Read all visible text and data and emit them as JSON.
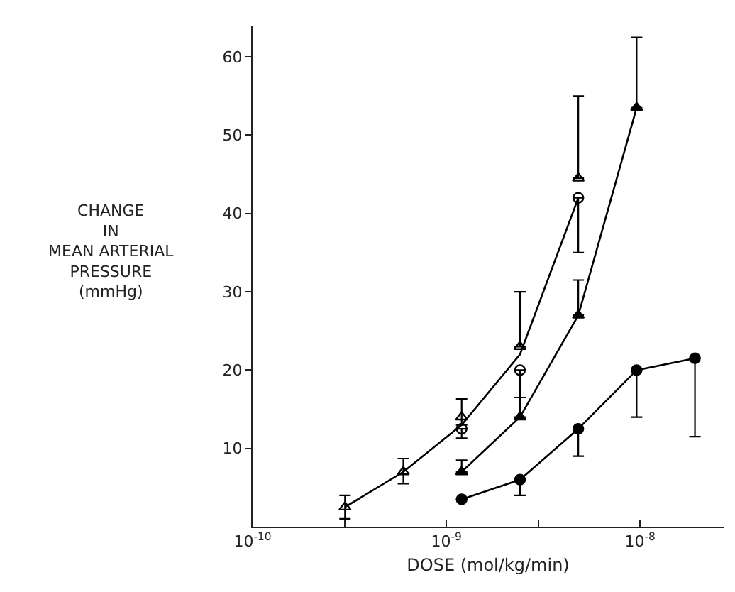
{
  "chart_data": {
    "type": "scatter",
    "xlabel": "DOSE (mol/kg/min)",
    "ylabel": "CHANGE\nIN\nMEAN ARTERIAL\nPRESSURE\n(mmHg)",
    "log": "x",
    "xlim": [
      1e-10,
      2.7e-08
    ],
    "xticks": [
      {
        "value": 1e-10,
        "label": "10$^{-10}$"
      },
      {
        "value": 3e-10,
        "label": null
      },
      {
        "value": 1e-09,
        "label": "10$^{-9}$"
      },
      {
        "value": 3e-09,
        "label": null
      },
      {
        "value": 1e-08,
        "label": "10$^{-8}$"
      }
    ],
    "ylim": [
      0,
      64
    ],
    "yticks": [
      10,
      20,
      30,
      40,
      50,
      60
    ],
    "series": [
      {
        "type": "line",
        "color": "#000000",
        "marker": "none",
        "line_style": "solid",
        "x": [
          3e-10,
          6e-10,
          1.2e-09,
          2.4e-09,
          4.8e-09
        ],
        "values": [
          2.5,
          7,
          13,
          22,
          42
        ]
      },
      {
        "color": "#000000",
        "marker": "triangle-open",
        "x": [
          3e-10,
          6e-10,
          1.2e-09,
          2.4e-09,
          4.8e-09
        ],
        "values": [
          2.5,
          7,
          14,
          23,
          44.5
        ],
        "errors": [
          [
            1,
            4
          ],
          [
            5.5,
            8.7
          ],
          [
            13,
            16.3
          ],
          [
            23,
            30
          ],
          [
            44.5,
            55
          ]
        ]
      },
      {
        "color": "#000000",
        "marker": "circle-open",
        "x": [
          1.2e-09,
          2.4e-09,
          4.8e-09
        ],
        "values": [
          12.5,
          20,
          42
        ],
        "errors": [
          [
            11.3,
            12.5
          ],
          [
            16.5,
            20
          ],
          [
            35,
            42
          ]
        ]
      },
      {
        "type": "line",
        "color": "#000000",
        "marker": "triangle",
        "line_style": "solid",
        "x": [
          1.2e-09,
          2.4e-09,
          4.8e-09,
          9.6e-09
        ],
        "values": [
          7,
          14,
          27,
          53.5
        ],
        "errors": [
          [
            7,
            8.5
          ],
          [
            14,
            16.5
          ],
          [
            27,
            31.5
          ],
          [
            53.5,
            62.5
          ]
        ]
      },
      {
        "type": "line",
        "color": "#000000",
        "marker": "circle",
        "line_style": "solid",
        "x": [
          1.2e-09,
          2.4e-09,
          4.8e-09,
          9.6e-09,
          1.92e-08
        ],
        "values": [
          3.5,
          6,
          12.5,
          20,
          21.5
        ],
        "errors": [
          null,
          [
            4,
            6
          ],
          [
            9,
            12.5
          ],
          [
            14,
            20
          ],
          [
            11.5,
            21.5
          ]
        ]
      }
    ]
  }
}
